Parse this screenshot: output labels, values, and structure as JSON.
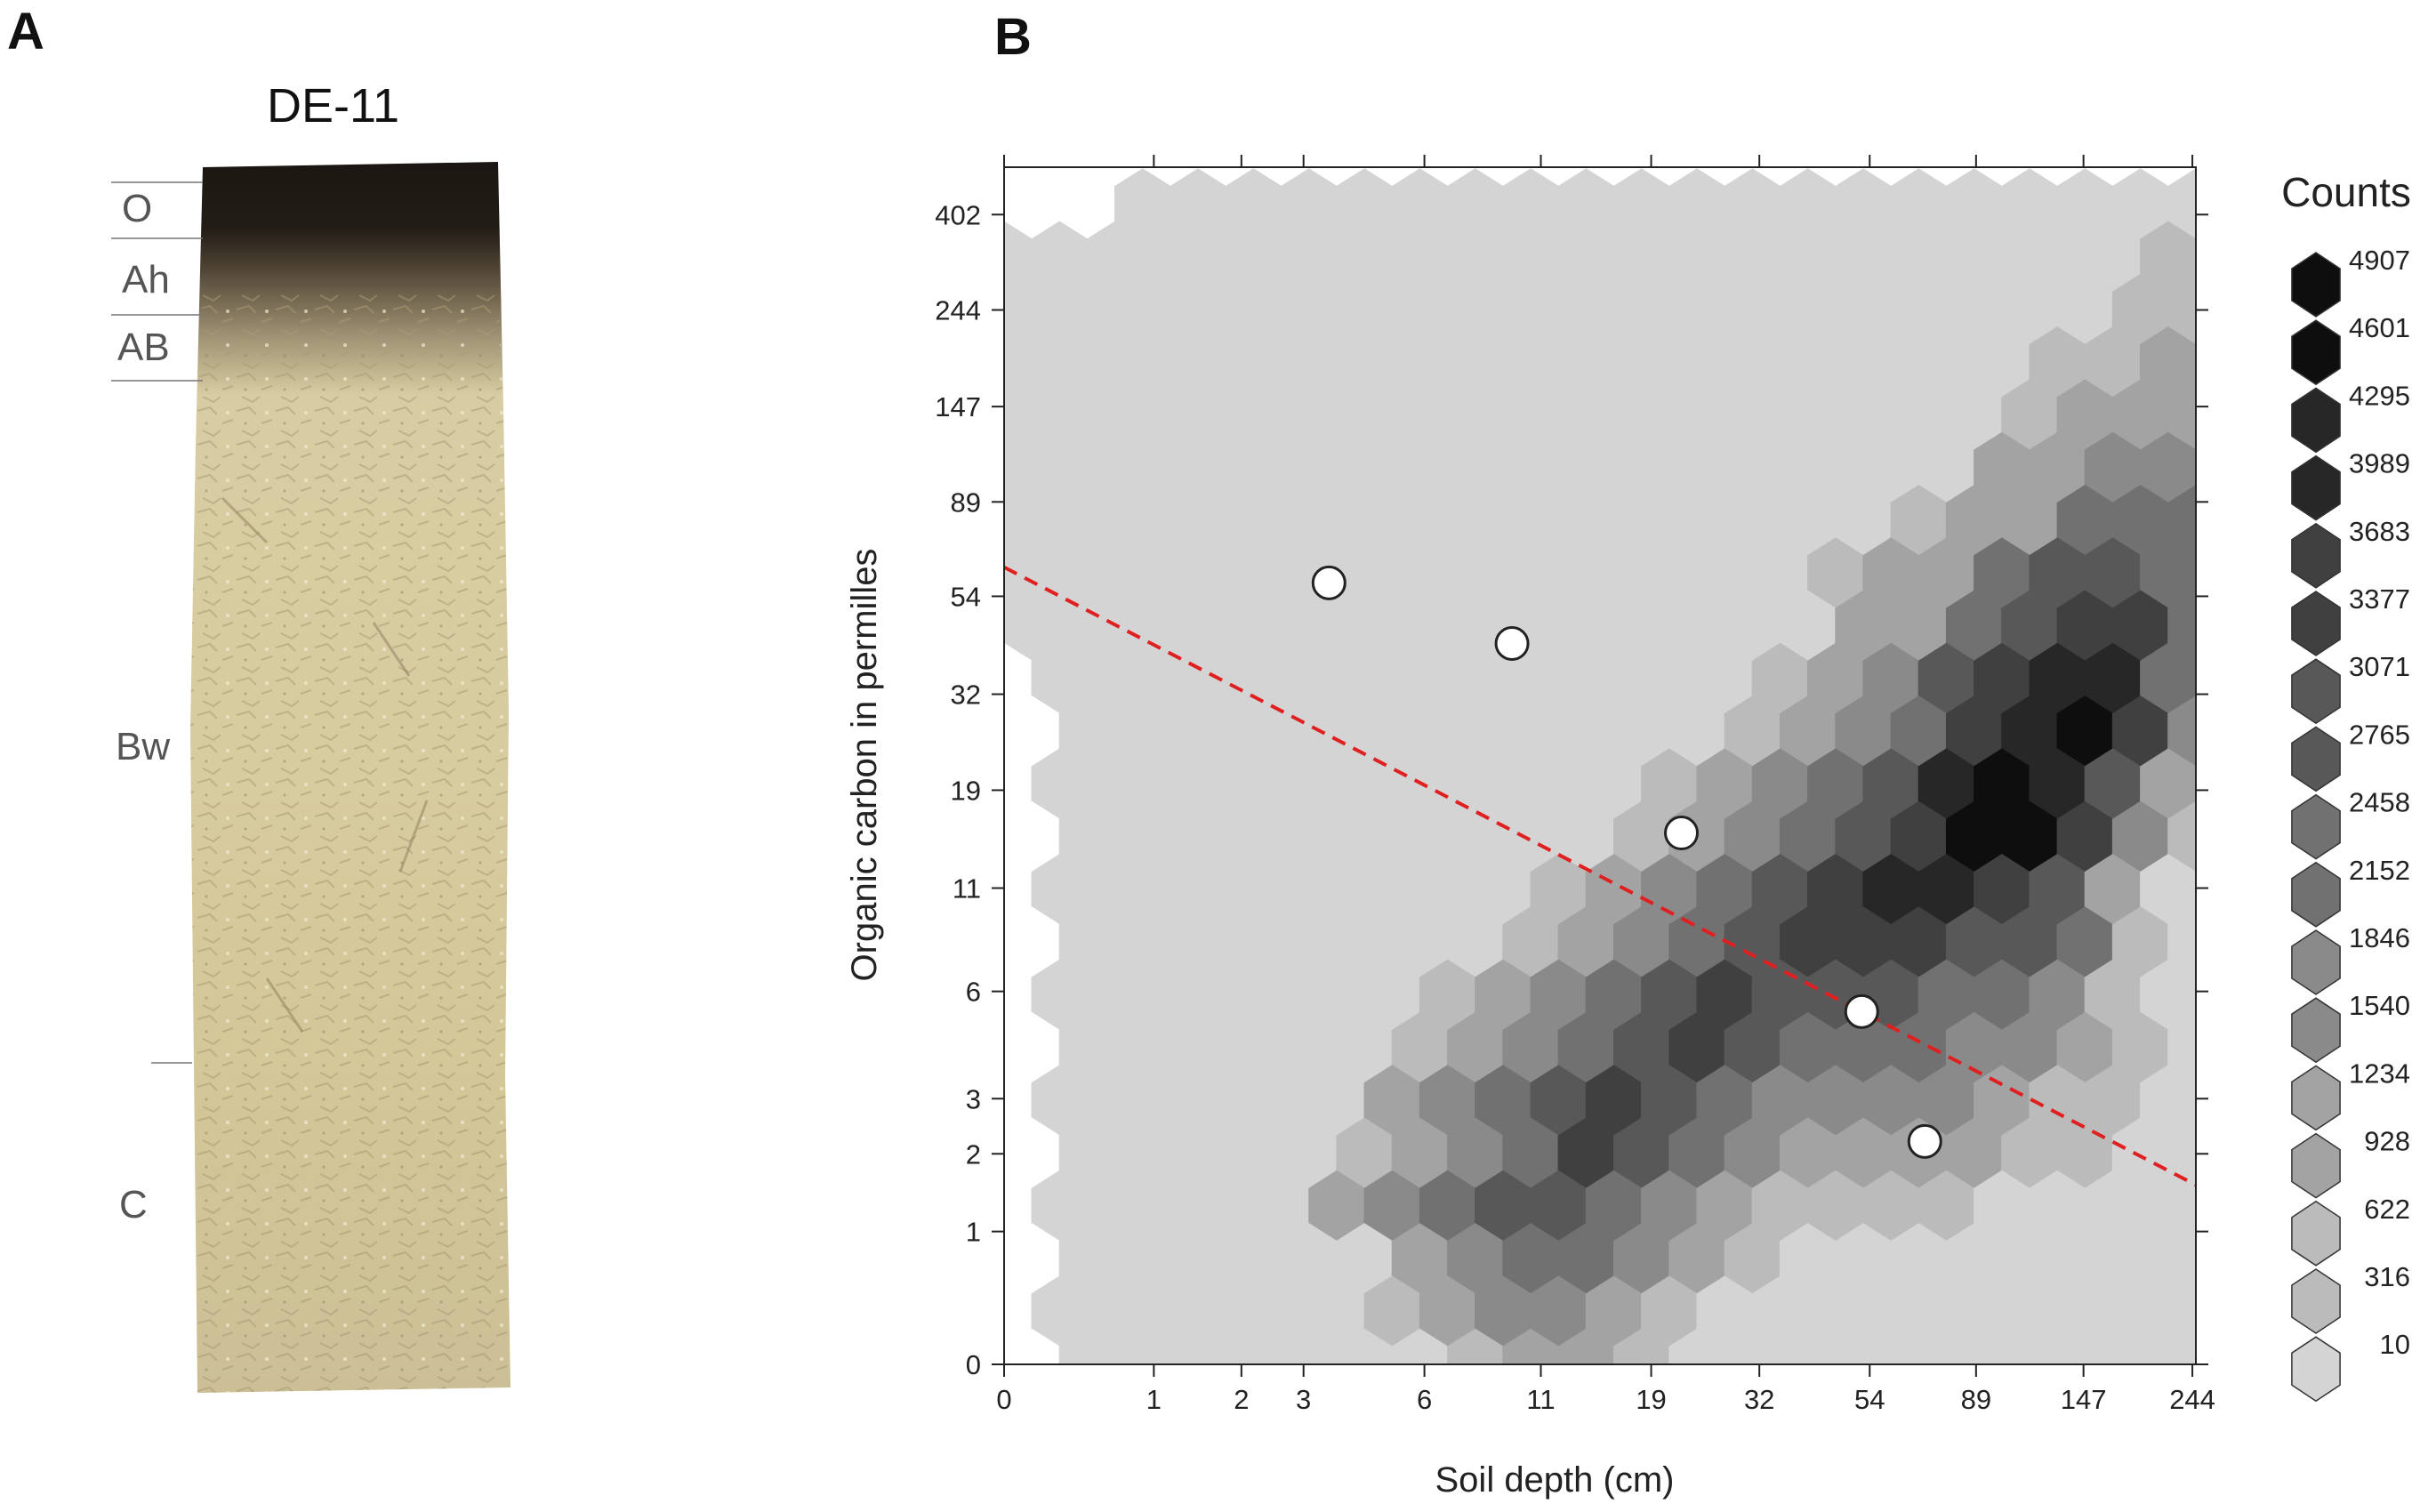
{
  "panels": {
    "a_label": "A",
    "b_label": "B"
  },
  "profile": {
    "title": "DE-11",
    "horizons": [
      "O",
      "Ah",
      "AB",
      "Bw",
      "C"
    ],
    "colors": {
      "organic": "#1c1712",
      "humus": "#4a3f30",
      "mineral": "#d8cca0",
      "parent": "#cfc39a"
    }
  },
  "chart_data": {
    "type": "hexbin",
    "xlabel": "Soil depth (cm)",
    "ylabel": "Organic carbon in permilles",
    "x_ticks": [
      "0",
      "1",
      "2",
      "3",
      "6",
      "11",
      "19",
      "32",
      "54",
      "89",
      "147",
      "244"
    ],
    "y_ticks": [
      "0",
      "1",
      "2",
      "3",
      "6",
      "11",
      "19",
      "32",
      "54",
      "89",
      "147",
      "244",
      "402"
    ],
    "scale": "log1p",
    "xlim": [
      0,
      248
    ],
    "ylim": [
      0,
      515
    ],
    "legend": {
      "title": "Counts",
      "levels": [
        10,
        316,
        622,
        928,
        1234,
        1540,
        1846,
        2152,
        2458,
        2765,
        3071,
        3377,
        3683,
        3989,
        4295,
        4601,
        4907
      ],
      "placement": "right"
    },
    "hex_grid": {
      "columns": 23,
      "rows": 25,
      "x_start_col": -1,
      "y_start_row": -1,
      "density_rows": [
        "00000000000000000000000",
        "00011111111111111111111",
        "01111111111111111111112",
        "01111111111111111111122",
        "01111111111111111111223",
        "01111111111111111112333",
        "01111111111111111113344",
        "01111111111111111233555",
        "01111111111111112335665",
        "01111111111111113356775",
        "00111111111111123467885",
        "00111111111111234578974",
        "00111111111112345689863",
        "00111111111123456799742",
        "00111111111234567887631",
        "00111111112345677766521",
        "00111111123456766655421",
        "00111111234567655544321",
        "00111111345676544443221",
        "00111112345765433332211",
        "00111113456654322221111",
        "00111111345543211111111",
        "00111111234432111111111",
        "00111111123321111111111",
        "00000000000000000000000"
      ]
    },
    "points": [
      {
        "x": 3.5,
        "y": 58
      },
      {
        "x": 9.5,
        "y": 42
      },
      {
        "x": 22,
        "y": 15
      },
      {
        "x": 52,
        "y": 5.3
      },
      {
        "x": 70,
        "y": 2.2
      }
    ],
    "trend_line": {
      "style": "dashed",
      "color": "#e02020",
      "x": [
        0,
        248
      ],
      "y": [
        63,
        1.55
      ]
    },
    "colors": {
      "empty": "#ffffff",
      "light": "#d4d4d4",
      "dark": "#0e0e0e",
      "point_fill": "#ffffff",
      "point_stroke": "#222222"
    }
  }
}
